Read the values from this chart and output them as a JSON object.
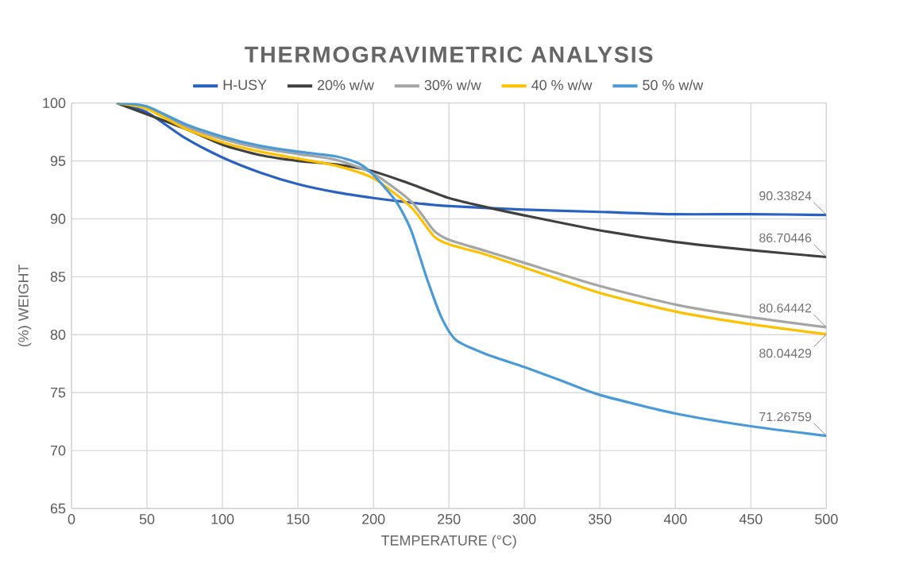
{
  "chart_data": {
    "type": "line",
    "title": "THERMOGRAVIMETRIC ANALYSIS",
    "xlabel": "TEMPERATURE (°C)",
    "ylabel": "(%) WEIGHT",
    "xlim": [
      0,
      500
    ],
    "xticks": [
      0,
      50,
      100,
      150,
      200,
      250,
      300,
      350,
      400,
      450,
      500
    ],
    "ylim": [
      65,
      100
    ],
    "yticks": [
      65,
      70,
      75,
      80,
      85,
      90,
      95,
      100
    ],
    "grid": true,
    "legend": "top",
    "marker": "none",
    "line_style": "solid",
    "series": [
      {
        "name": "H-USY",
        "color": "#2a62c4",
        "x": [
          30,
          50,
          75,
          100,
          125,
          150,
          175,
          200,
          225,
          250,
          300,
          350,
          400,
          450,
          500
        ],
        "values": [
          100,
          99.2,
          97,
          95.3,
          94,
          93,
          92.3,
          91.8,
          91.4,
          91.1,
          90.8,
          90.6,
          90.4,
          90.4,
          90.33824
        ],
        "value_labels": [
          null,
          null,
          null,
          null,
          null,
          null,
          null,
          null,
          null,
          null,
          null,
          null,
          null,
          null,
          "90.33824"
        ]
      },
      {
        "name": "20% w/w",
        "color": "#404040",
        "x": [
          30,
          50,
          75,
          100,
          125,
          150,
          175,
          200,
          225,
          250,
          275,
          300,
          350,
          400,
          450,
          500
        ],
        "values": [
          100,
          null,
          97.8,
          96.4,
          95.5,
          95.0,
          94.7,
          94.1,
          93.0,
          91.8,
          91.0,
          90.3,
          89.0,
          88.0,
          87.3,
          86.70446
        ],
        "value_labels": [
          null,
          null,
          null,
          null,
          null,
          null,
          null,
          null,
          null,
          null,
          null,
          null,
          null,
          null,
          null,
          "86.70446"
        ]
      },
      {
        "name": "30% w/w",
        "color": "#a5a5a5",
        "x": [
          30,
          50,
          75,
          100,
          125,
          150,
          175,
          200,
          225,
          240,
          250,
          275,
          300,
          350,
          400,
          450,
          500
        ],
        "values": [
          100,
          99.6,
          98,
          96.9,
          96.1,
          95.6,
          95.1,
          93.9,
          91.5,
          89,
          88.2,
          87.2,
          86.2,
          84.2,
          82.6,
          81.5,
          80.64442
        ],
        "value_labels": [
          null,
          null,
          null,
          null,
          null,
          null,
          null,
          null,
          null,
          null,
          null,
          null,
          null,
          null,
          null,
          null,
          "80.64442"
        ]
      },
      {
        "name": "40 % w/w",
        "color": "#ffc000",
        "x": [
          30,
          50,
          75,
          100,
          125,
          150,
          175,
          200,
          225,
          240,
          250,
          275,
          300,
          350,
          400,
          450,
          500
        ],
        "values": [
          100,
          99.5,
          97.8,
          96.6,
          95.8,
          95.2,
          94.6,
          93.5,
          91,
          88.5,
          87.8,
          86.9,
          85.8,
          83.6,
          82,
          80.9,
          80.04429
        ],
        "value_labels": [
          null,
          null,
          null,
          null,
          null,
          null,
          null,
          null,
          null,
          null,
          null,
          null,
          null,
          null,
          null,
          null,
          "80.04429"
        ]
      },
      {
        "name": "50 % w/w",
        "color": "#4a9ad8",
        "x": [
          30,
          50,
          75,
          100,
          125,
          150,
          175,
          190,
          200,
          215,
          225,
          235,
          245,
          255,
          275,
          300,
          325,
          350,
          400,
          450,
          500
        ],
        "values": [
          100,
          99.7,
          98.2,
          97.1,
          96.3,
          95.8,
          95.4,
          94.8,
          93.8,
          91.5,
          89,
          85,
          81.5,
          79.5,
          78.3,
          77.2,
          76,
          74.8,
          73.2,
          72.1,
          71.26759
        ],
        "value_labels": [
          null,
          null,
          null,
          null,
          null,
          null,
          null,
          null,
          null,
          null,
          null,
          null,
          null,
          null,
          null,
          null,
          null,
          null,
          null,
          null,
          "71.26759"
        ]
      }
    ]
  }
}
